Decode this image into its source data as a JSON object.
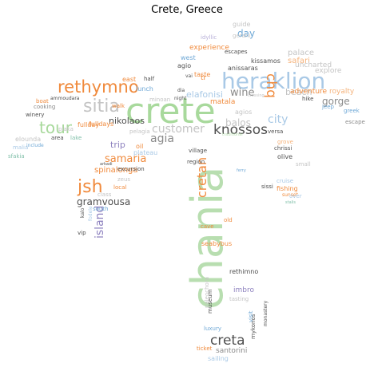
{
  "title": "Crete, Greece",
  "palette": {
    "green": "#a8d99c",
    "blue": "#6fa8d6",
    "lightblue": "#a9c9e6",
    "orange": "#f08a3c",
    "lightorange": "#f5b27a",
    "grey": "#8a8a8a",
    "lightgrey": "#c4c4c4",
    "dark": "#4f4f4f",
    "purple": "#8e82bf",
    "lightpurple": "#b8b0d8",
    "teal": "#7fbfa8"
  },
  "words": [
    "crete",
    "chania",
    "heraklion",
    "rethymno",
    "sitia",
    "tour",
    "jsh",
    "knossos",
    "creta",
    "chq",
    "cretan",
    "island",
    "agia",
    "samaria",
    "gramvousa",
    "spinalonga",
    "trip",
    "customer",
    "balos",
    "gorge",
    "city",
    "wine",
    "beach",
    "palace",
    "safari",
    "explore",
    "uncharted",
    "adventure",
    "royalty",
    "kissamos",
    "anissaras",
    "day",
    "guide",
    "gerani",
    "idyllic",
    "escapes",
    "experience",
    "west",
    "agio",
    "taste",
    "east",
    "half",
    "nikolaos",
    "lunch",
    "minoan",
    "elafonisi",
    "agios",
    "matala",
    "fulldays",
    "fullday",
    "cooking",
    "winery",
    "plaka",
    "elounda",
    "malia",
    "sfakia",
    "area",
    "lake",
    "include",
    "boat",
    "ammoudara",
    "oil",
    "plateau",
    "excursion",
    "zeus",
    "local",
    "class",
    "south",
    "vip",
    "kalo",
    "fodele",
    "seabybus",
    "cave",
    "old",
    "paleochora",
    "rethimno",
    "imbro",
    "museum",
    "tasting",
    "luxury",
    "santorini",
    "ticket",
    "sailing",
    "mykonos",
    "visit",
    "monastery",
    "sissi",
    "olive",
    "fishing",
    "sunset",
    "cruise",
    "over",
    "small",
    "chrissi",
    "village",
    "region",
    "versa",
    "grove",
    "jeep",
    "hike",
    "greek",
    "escape",
    "stalis",
    "ferry",
    "walk",
    "night",
    "dia",
    "traditional",
    "pelagia",
    "arkadi",
    "crossing",
    "vai",
    "tr"
  ]
}
